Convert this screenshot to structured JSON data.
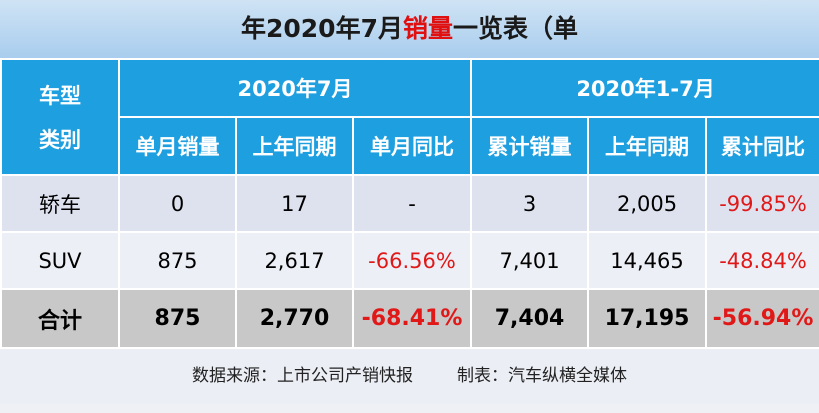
{
  "header": {
    "title": [
      "年2020年7月",
      "销量",
      "一览表（单"
    ]
  },
  "table": {
    "corner": [
      "车型",
      "类别"
    ],
    "groups": [
      "2020年7月",
      "2020年1-7月"
    ],
    "columns": [
      "单月销量",
      "上年同期",
      "单月同比",
      "累计销量",
      "上年同期",
      "累计同比"
    ],
    "rows": [
      [
        "轿车",
        "0",
        "17",
        "-",
        "3",
        "2,005",
        "-99.85%"
      ],
      [
        "SUV",
        "875",
        "2,617",
        "-66.56%",
        "7,401",
        "14,465",
        "-48.84%"
      ],
      [
        "合计",
        "875",
        "2,770",
        "-68.41%",
        "7,404",
        "17,195",
        "-56.94%"
      ]
    ]
  },
  "footer": [
    "数据来源：上市公司产销快报",
    "制表：汽车纵横全媒体"
  ]
}
